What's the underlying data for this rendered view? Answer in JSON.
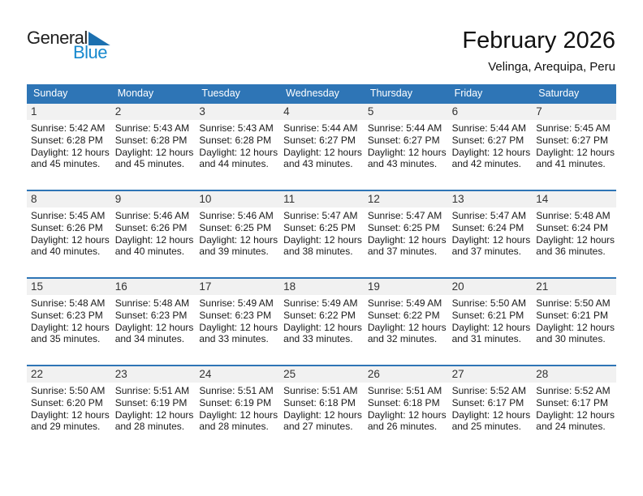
{
  "logo": {
    "part1": "General",
    "part2": "Blue"
  },
  "header": {
    "title": "February 2026",
    "subtitle": "Velinga, Arequipa, Peru"
  },
  "colors": {
    "header_bg": "#2E75B6",
    "row_border": "#2E75B6",
    "date_band_bg": "#F1F1F1",
    "logo_blue": "#1789CE",
    "logo_triangle": "#1C70B0"
  },
  "calendar": {
    "day_headers": [
      "Sunday",
      "Monday",
      "Tuesday",
      "Wednesday",
      "Thursday",
      "Friday",
      "Saturday"
    ],
    "weeks": [
      [
        {
          "n": "1",
          "lines": [
            "Sunrise: 5:42 AM",
            "Sunset: 6:28 PM",
            "Daylight: 12 hours",
            "and 45 minutes."
          ]
        },
        {
          "n": "2",
          "lines": [
            "Sunrise: 5:43 AM",
            "Sunset: 6:28 PM",
            "Daylight: 12 hours",
            "and 45 minutes."
          ]
        },
        {
          "n": "3",
          "lines": [
            "Sunrise: 5:43 AM",
            "Sunset: 6:28 PM",
            "Daylight: 12 hours",
            "and 44 minutes."
          ]
        },
        {
          "n": "4",
          "lines": [
            "Sunrise: 5:44 AM",
            "Sunset: 6:27 PM",
            "Daylight: 12 hours",
            "and 43 minutes."
          ]
        },
        {
          "n": "5",
          "lines": [
            "Sunrise: 5:44 AM",
            "Sunset: 6:27 PM",
            "Daylight: 12 hours",
            "and 43 minutes."
          ]
        },
        {
          "n": "6",
          "lines": [
            "Sunrise: 5:44 AM",
            "Sunset: 6:27 PM",
            "Daylight: 12 hours",
            "and 42 minutes."
          ]
        },
        {
          "n": "7",
          "lines": [
            "Sunrise: 5:45 AM",
            "Sunset: 6:27 PM",
            "Daylight: 12 hours",
            "and 41 minutes."
          ]
        }
      ],
      [
        {
          "n": "8",
          "lines": [
            "Sunrise: 5:45 AM",
            "Sunset: 6:26 PM",
            "Daylight: 12 hours",
            "and 40 minutes."
          ]
        },
        {
          "n": "9",
          "lines": [
            "Sunrise: 5:46 AM",
            "Sunset: 6:26 PM",
            "Daylight: 12 hours",
            "and 40 minutes."
          ]
        },
        {
          "n": "10",
          "lines": [
            "Sunrise: 5:46 AM",
            "Sunset: 6:25 PM",
            "Daylight: 12 hours",
            "and 39 minutes."
          ]
        },
        {
          "n": "11",
          "lines": [
            "Sunrise: 5:47 AM",
            "Sunset: 6:25 PM",
            "Daylight: 12 hours",
            "and 38 minutes."
          ]
        },
        {
          "n": "12",
          "lines": [
            "Sunrise: 5:47 AM",
            "Sunset: 6:25 PM",
            "Daylight: 12 hours",
            "and 37 minutes."
          ]
        },
        {
          "n": "13",
          "lines": [
            "Sunrise: 5:47 AM",
            "Sunset: 6:24 PM",
            "Daylight: 12 hours",
            "and 37 minutes."
          ]
        },
        {
          "n": "14",
          "lines": [
            "Sunrise: 5:48 AM",
            "Sunset: 6:24 PM",
            "Daylight: 12 hours",
            "and 36 minutes."
          ]
        }
      ],
      [
        {
          "n": "15",
          "lines": [
            "Sunrise: 5:48 AM",
            "Sunset: 6:23 PM",
            "Daylight: 12 hours",
            "and 35 minutes."
          ]
        },
        {
          "n": "16",
          "lines": [
            "Sunrise: 5:48 AM",
            "Sunset: 6:23 PM",
            "Daylight: 12 hours",
            "and 34 minutes."
          ]
        },
        {
          "n": "17",
          "lines": [
            "Sunrise: 5:49 AM",
            "Sunset: 6:23 PM",
            "Daylight: 12 hours",
            "and 33 minutes."
          ]
        },
        {
          "n": "18",
          "lines": [
            "Sunrise: 5:49 AM",
            "Sunset: 6:22 PM",
            "Daylight: 12 hours",
            "and 33 minutes."
          ]
        },
        {
          "n": "19",
          "lines": [
            "Sunrise: 5:49 AM",
            "Sunset: 6:22 PM",
            "Daylight: 12 hours",
            "and 32 minutes."
          ]
        },
        {
          "n": "20",
          "lines": [
            "Sunrise: 5:50 AM",
            "Sunset: 6:21 PM",
            "Daylight: 12 hours",
            "and 31 minutes."
          ]
        },
        {
          "n": "21",
          "lines": [
            "Sunrise: 5:50 AM",
            "Sunset: 6:21 PM",
            "Daylight: 12 hours",
            "and 30 minutes."
          ]
        }
      ],
      [
        {
          "n": "22",
          "lines": [
            "Sunrise: 5:50 AM",
            "Sunset: 6:20 PM",
            "Daylight: 12 hours",
            "and 29 minutes."
          ]
        },
        {
          "n": "23",
          "lines": [
            "Sunrise: 5:51 AM",
            "Sunset: 6:19 PM",
            "Daylight: 12 hours",
            "and 28 minutes."
          ]
        },
        {
          "n": "24",
          "lines": [
            "Sunrise: 5:51 AM",
            "Sunset: 6:19 PM",
            "Daylight: 12 hours",
            "and 28 minutes."
          ]
        },
        {
          "n": "25",
          "lines": [
            "Sunrise: 5:51 AM",
            "Sunset: 6:18 PM",
            "Daylight: 12 hours",
            "and 27 minutes."
          ]
        },
        {
          "n": "26",
          "lines": [
            "Sunrise: 5:51 AM",
            "Sunset: 6:18 PM",
            "Daylight: 12 hours",
            "and 26 minutes."
          ]
        },
        {
          "n": "27",
          "lines": [
            "Sunrise: 5:52 AM",
            "Sunset: 6:17 PM",
            "Daylight: 12 hours",
            "and 25 minutes."
          ]
        },
        {
          "n": "28",
          "lines": [
            "Sunrise: 5:52 AM",
            "Sunset: 6:17 PM",
            "Daylight: 12 hours",
            "and 24 minutes."
          ]
        }
      ]
    ]
  }
}
